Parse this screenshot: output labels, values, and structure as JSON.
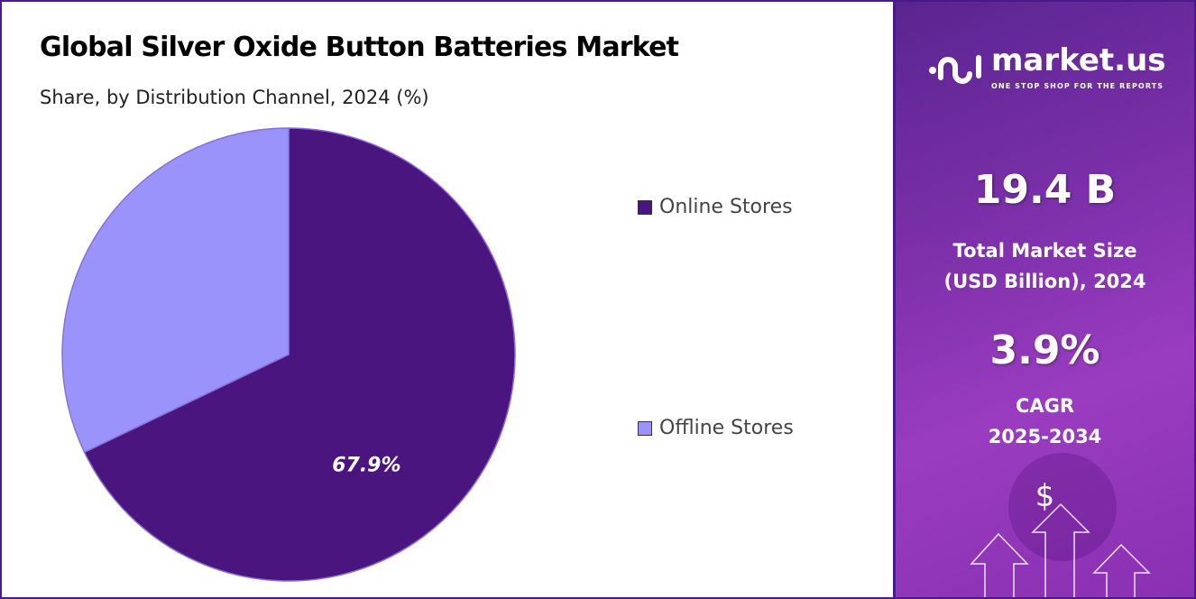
{
  "chart_data": {
    "type": "pie",
    "title": "Global Silver Oxide Button Batteries Market",
    "subtitle": "Share, by Distribution Channel, 2024 (%)",
    "slices": [
      {
        "name": "Online Stores",
        "value": 67.9,
        "label": "67.9%",
        "color": "#4b1580"
      },
      {
        "name": "Offline Stores",
        "value": 32.1,
        "label": "",
        "color": "#9b93fc"
      }
    ],
    "legend_placement": "right"
  },
  "sidebar": {
    "brand": "market.us",
    "tagline": "ONE STOP SHOP FOR THE REPORTS",
    "market_size": "19.4 B",
    "market_size_label_1": "Total Market Size",
    "market_size_label_2": "(USD Billion), 2024",
    "cagr": "3.9%",
    "cagr_label_1": "CAGR",
    "cagr_label_2": "2025-2034",
    "dollar": "$"
  }
}
